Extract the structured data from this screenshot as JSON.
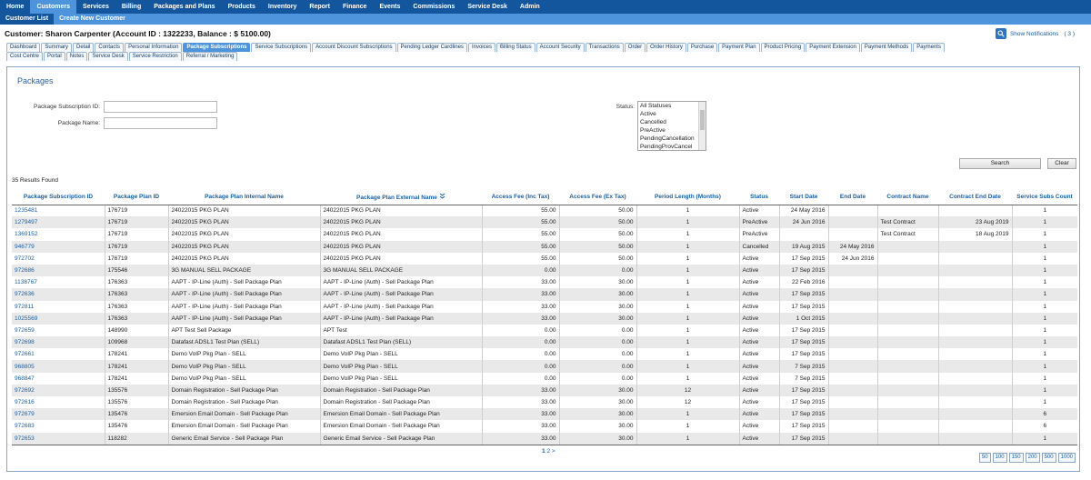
{
  "topnav": [
    "Home",
    "Customers",
    "Services",
    "Billing",
    "Packages and Plans",
    "Products",
    "Inventory",
    "Report",
    "Finance",
    "Events",
    "Commissions",
    "Service Desk",
    "Admin"
  ],
  "subnav": [
    "Customer List",
    "Create New Customer"
  ],
  "customer": {
    "title": "Customer: Sharon Carpenter (Account ID : 1322233, Balance : $ 5100.00)"
  },
  "notifications": {
    "label": "Show Notifications",
    "count": "( 3 )"
  },
  "tabs_row1": [
    "Dashboard",
    "Summary",
    "Detail",
    "Contacts",
    "Personal Information",
    "Package Subscriptions",
    "Service Subscriptions",
    "Account Discount Subscriptions",
    "Pending Ledger Cardlines",
    "Invoices",
    "Billing Status",
    "Account Security",
    "Transactions",
    "Order",
    "Order History",
    "Purchase",
    "Payment Plan",
    "Product Pricing",
    "Payment Extension",
    "Payment Methods",
    "Payments"
  ],
  "tabs_row2": [
    "Cost Centre",
    "Portal",
    "Notes",
    "Service Desk",
    "Service Restriction",
    "Referral / Marketing"
  ],
  "packages": {
    "title": "Packages",
    "sub_id_label": "Package Subscription ID:",
    "sub_id_value": "",
    "name_label": "Package Name:",
    "name_value": "",
    "status_label": "Status:",
    "status_options": [
      "All Statuses",
      "Active",
      "Cancelled",
      "PreActive",
      "PendingCancellation",
      "PendingProvCancel"
    ],
    "search_label": "Search",
    "clear_label": "Clear",
    "results": "35 Results Found"
  },
  "table": {
    "columns": [
      "Package Subscription ID",
      "Package Plan ID",
      "Package Plan Internal Name",
      "Package Plan External Name",
      "Access Fee (Inc Tax)",
      "Access Fee (Ex Tax)",
      "Period Length (Months)",
      "Status",
      "Start Date",
      "End Date",
      "Contract Name",
      "Contract End Date",
      "Service Subs Count"
    ],
    "rows": [
      [
        "1235481",
        "176719",
        "24022015 PKG PLAN",
        "24022015 PKG PLAN",
        "55.00",
        "50.00",
        "1",
        "Active",
        "24 May 2016",
        "",
        "",
        "",
        "1"
      ],
      [
        "1279497",
        "176719",
        "24022015 PKG PLAN",
        "24022015 PKG PLAN",
        "55.00",
        "50.00",
        "1",
        "PreActive",
        "24 Jun 2016",
        "",
        "Test Contract",
        "23 Aug 2019",
        "1"
      ],
      [
        "1369152",
        "176719",
        "24022015 PKG PLAN",
        "24022015 PKG PLAN",
        "55.00",
        "50.00",
        "1",
        "PreActive",
        "",
        "",
        "Test Contract",
        "18 Aug 2019",
        "1"
      ],
      [
        "946779",
        "176719",
        "24022015 PKG PLAN",
        "24022015 PKG PLAN",
        "55.00",
        "50.00",
        "1",
        "Cancelled",
        "19 Aug 2015",
        "24 May 2016",
        "",
        "",
        "1"
      ],
      [
        "972702",
        "176719",
        "24022015 PKG PLAN",
        "24022015 PKG PLAN",
        "55.00",
        "50.00",
        "1",
        "Active",
        "17 Sep 2015",
        "24 Jun 2016",
        "",
        "",
        "1"
      ],
      [
        "972686",
        "175546",
        "3G MANUAL SELL PACKAGE",
        "3G MANUAL SELL PACKAGE",
        "0.00",
        "0.00",
        "1",
        "Active",
        "17 Sep 2015",
        "",
        "",
        "",
        "1"
      ],
      [
        "1138767",
        "176363",
        "AAPT - IP-Line (Auth) - Sell Package Plan",
        "AAPT - IP-Line (Auth) - Sell Package Plan",
        "33.00",
        "30.00",
        "1",
        "Active",
        "22 Feb 2016",
        "",
        "",
        "",
        "1"
      ],
      [
        "972636",
        "176363",
        "AAPT - IP-Line (Auth) - Sell Package Plan",
        "AAPT - IP-Line (Auth) - Sell Package Plan",
        "33.00",
        "30.00",
        "1",
        "Active",
        "17 Sep 2015",
        "",
        "",
        "",
        "1"
      ],
      [
        "972811",
        "176363",
        "AAPT - IP-Line (Auth) - Sell Package Plan",
        "AAPT - IP-Line (Auth) - Sell Package Plan",
        "33.00",
        "30.00",
        "1",
        "Active",
        "17 Sep 2015",
        "",
        "",
        "",
        "1"
      ],
      [
        "1025569",
        "176363",
        "AAPT - IP-Line (Auth) - Sell Package Plan",
        "AAPT - IP-Line (Auth) - Sell Package Plan",
        "33.00",
        "30.00",
        "1",
        "Active",
        "1 Oct 2015",
        "",
        "",
        "",
        "1"
      ],
      [
        "972659",
        "148990",
        "APT Test Sell Package",
        "APT Test",
        "0.00",
        "0.00",
        "1",
        "Active",
        "17 Sep 2015",
        "",
        "",
        "",
        "1"
      ],
      [
        "972698",
        "109968",
        "Datafast ADSL1 Test Plan (SELL)",
        "Datafast ADSL1 Test Plan (SELL)",
        "0.00",
        "0.00",
        "1",
        "Active",
        "17 Sep 2015",
        "",
        "",
        "",
        "1"
      ],
      [
        "972661",
        "178241",
        "Demo VoIP Pkg Plan - SELL",
        "Demo VoIP Pkg Plan - SELL",
        "0.00",
        "0.00",
        "1",
        "Active",
        "17 Sep 2015",
        "",
        "",
        "",
        "1"
      ],
      [
        "968805",
        "178241",
        "Demo VoIP Pkg Plan - SELL",
        "Demo VoIP Pkg Plan - SELL",
        "0.00",
        "0.00",
        "1",
        "Active",
        "7 Sep 2015",
        "",
        "",
        "",
        "1"
      ],
      [
        "968847",
        "178241",
        "Demo VoIP Pkg Plan - SELL",
        "Demo VoIP Pkg Plan - SELL",
        "0.00",
        "0.00",
        "1",
        "Active",
        "7 Sep 2015",
        "",
        "",
        "",
        "1"
      ],
      [
        "972692",
        "135576",
        "Domain Registration - Sell Package Plan",
        "Domain Registration - Sell Package Plan",
        "33.00",
        "30.00",
        "12",
        "Active",
        "17 Sep 2015",
        "",
        "",
        "",
        "1"
      ],
      [
        "972616",
        "135576",
        "Domain Registration - Sell Package Plan",
        "Domain Registration - Sell Package Plan",
        "33.00",
        "30.00",
        "12",
        "Active",
        "17 Sep 2015",
        "",
        "",
        "",
        "1"
      ],
      [
        "972679",
        "135476",
        "Emersion Email Domain - Sell Package Plan",
        "Emersion Email Domain - Sell Package Plan",
        "33.00",
        "30.00",
        "1",
        "Active",
        "17 Sep 2015",
        "",
        "",
        "",
        "6"
      ],
      [
        "972683",
        "135476",
        "Emersion Email Domain - Sell Package Plan",
        "Emersion Email Domain - Sell Package Plan",
        "33.00",
        "30.00",
        "1",
        "Active",
        "17 Sep 2015",
        "",
        "",
        "",
        "6"
      ],
      [
        "972653",
        "118282",
        "Generic Email Service - Sell Package Plan",
        "Generic Email Service - Sell Package Plan",
        "33.00",
        "30.00",
        "1",
        "Active",
        "17 Sep 2015",
        "",
        "",
        "",
        "1"
      ]
    ]
  },
  "pager": {
    "current": "1",
    "next_page": "2",
    "next": ">"
  },
  "page_sizes": [
    "50",
    "100",
    "150",
    "200",
    "500",
    "1000"
  ],
  "colors": {
    "nav": "#14569e",
    "subnav": "#4d94dc",
    "link": "#1a5fa6"
  }
}
